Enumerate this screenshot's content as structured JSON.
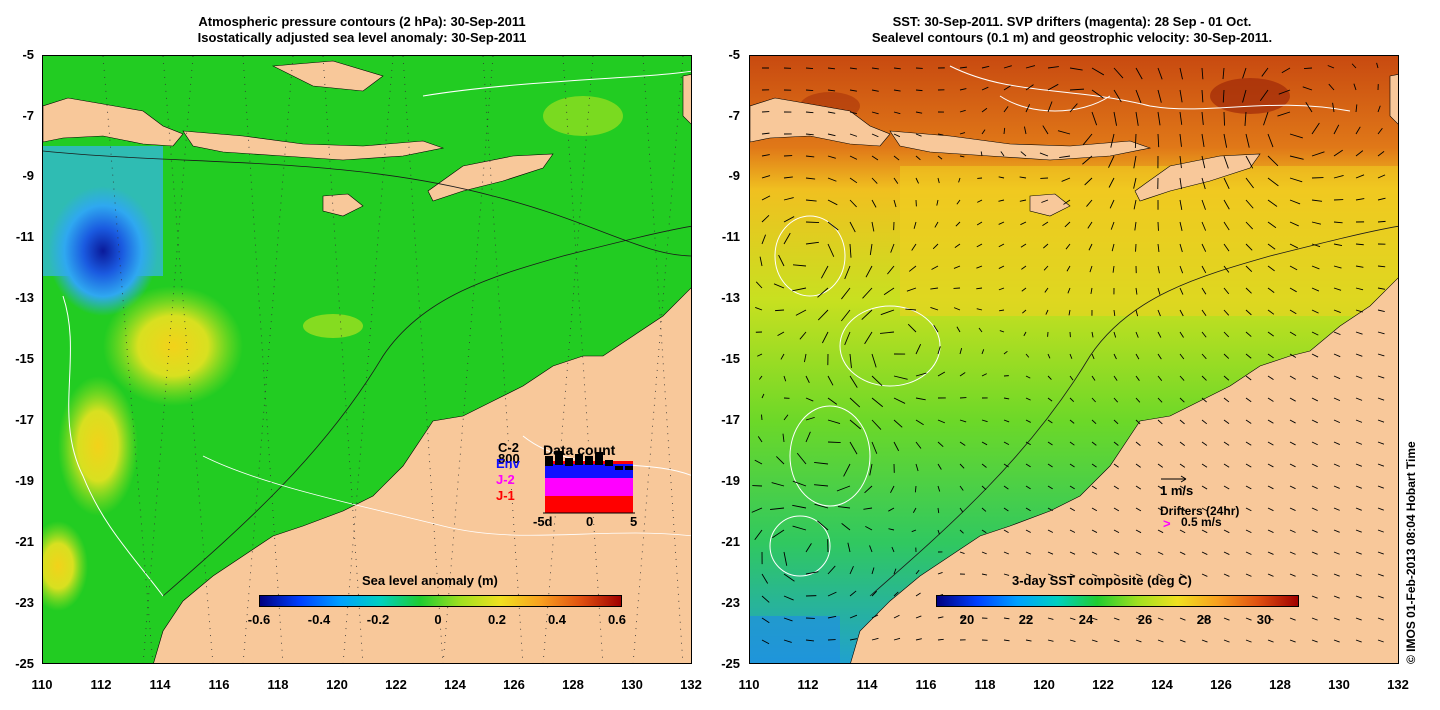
{
  "left_panel": {
    "title_line1": "Atmospheric pressure contours (2 hPa): 30-Sep-2011",
    "title_line2": "Isostatically adjusted sea level anomaly: 30-Sep-2011",
    "colorbar_label": "Sea level anomaly (m)",
    "colorbar_ticks": [
      "-0.6",
      "-0.4",
      "-0.2",
      "0",
      "0.2",
      "0.4",
      "0.6"
    ],
    "data_count": {
      "title": "Data count",
      "satellites": [
        {
          "label": "C-2",
          "color": "#000000"
        },
        {
          "label": "Env",
          "color": "#1010ff"
        },
        {
          "label": "J-2",
          "color": "#ff00ff"
        },
        {
          "label": "J-1",
          "color": "#ff0000"
        }
      ],
      "y_label": "800",
      "x_ticks": [
        "-5d",
        "0",
        "5"
      ]
    }
  },
  "right_panel": {
    "title_line1": "SST: 30-Sep-2011. SVP drifters (magenta): 28 Sep - 01 Oct.",
    "title_line2": "Sealevel contours (0.1 m) and geostrophic velocity: 30-Sep-2011.",
    "colorbar_label": "3-day SST composite (deg C)",
    "colorbar_ticks": [
      "20",
      "22",
      "24",
      "26",
      "28",
      "30"
    ],
    "velocity_legend": "1 m/s",
    "drifters_legend": "Drifters (24hr)",
    "drifter_speed": "0.5 m/s",
    "drifter_marker": ">"
  },
  "axes": {
    "y_ticks": [
      "-5",
      "-7",
      "-9",
      "-11",
      "-13",
      "-15",
      "-17",
      "-19",
      "-21",
      "-23",
      "-25"
    ],
    "x_ticks": [
      "110",
      "112",
      "114",
      "116",
      "118",
      "120",
      "122",
      "124",
      "126",
      "128",
      "130",
      "132"
    ]
  },
  "credit": "© IMOS 01-Feb-2013 08:04 Hobart Time",
  "colors": {
    "land": "#f8c89a",
    "sla_background": "#22cc22",
    "sst_north": "#d8661a",
    "sst_south": "#88dd22"
  }
}
